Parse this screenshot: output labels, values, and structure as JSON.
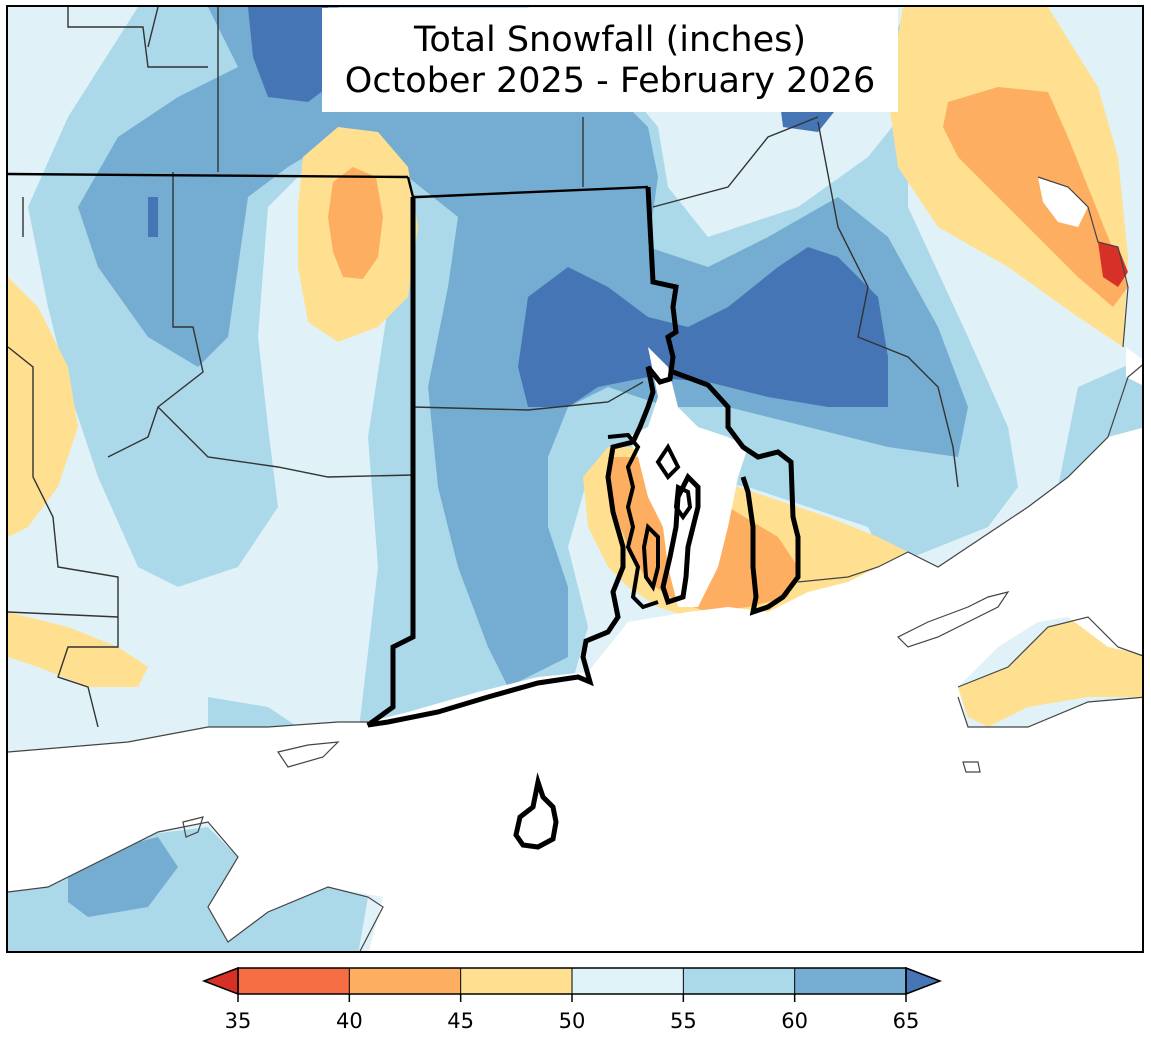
{
  "title": {
    "line1": "Total Snowfall (inches)",
    "line2": "October 2025 - February 2026"
  },
  "legend": {
    "type": "colorbar",
    "extend": "both",
    "bins": [
      {
        "min": 35,
        "max": 40,
        "color": "#f46d43"
      },
      {
        "min": 40,
        "max": 45,
        "color": "#fdae61"
      },
      {
        "min": 45,
        "max": 50,
        "color": "#fee090"
      },
      {
        "min": 50,
        "max": 55,
        "color": "#e0f3f8"
      },
      {
        "min": 55,
        "max": 60,
        "color": "#abd9e9"
      },
      {
        "min": 60,
        "max": 65,
        "color": "#74add1"
      }
    ],
    "under_color": "#d73027",
    "over_color": "#4575b4",
    "ticks": [
      "35",
      "40",
      "45",
      "50",
      "55",
      "60",
      "65"
    ]
  },
  "map": {
    "region": "Rhode Island and surrounding southern New England",
    "water_color": "#ffffff",
    "state_border_color": "#000000",
    "county_border_color": "#333333"
  }
}
